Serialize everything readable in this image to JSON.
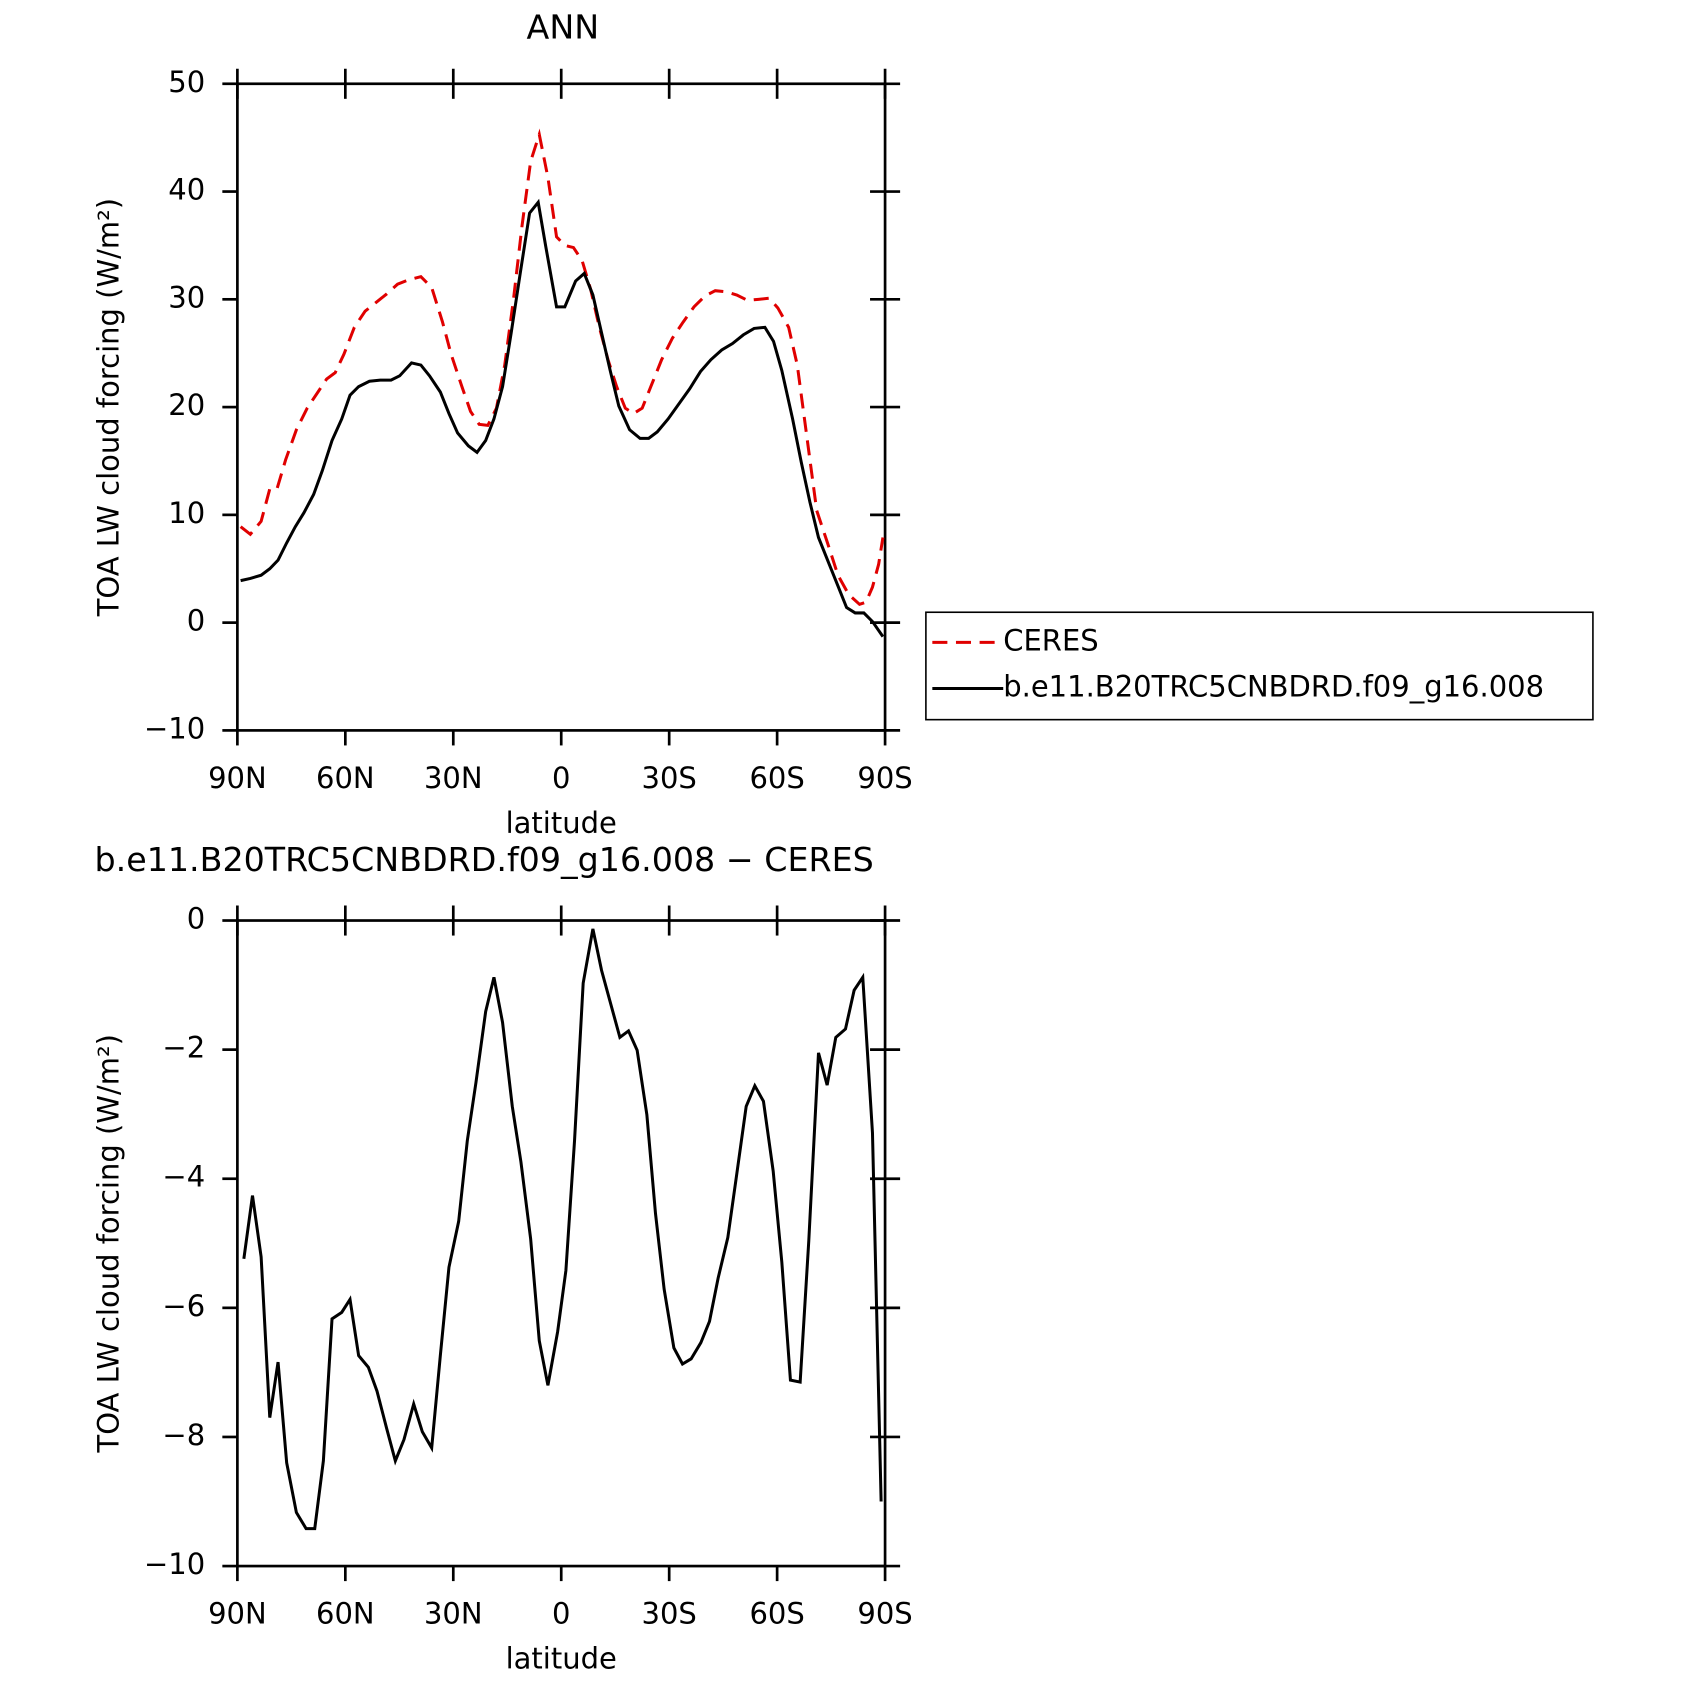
{
  "chart_data": [
    {
      "type": "line",
      "title": "ANN",
      "xlabel": "latitude",
      "ylabel": "TOA LW cloud forcing (W/m²)",
      "xlim": [
        90,
        -90
      ],
      "ylim": [
        -10,
        50
      ],
      "xticks": [
        {
          "value": 90,
          "label": "90N"
        },
        {
          "value": 60,
          "label": "60N"
        },
        {
          "value": 30,
          "label": "30N"
        },
        0,
        {
          "value": -30,
          "label": "30S"
        },
        {
          "value": -60,
          "label": "60S"
        },
        {
          "value": -90,
          "label": "90S"
        }
      ],
      "yticks": [
        {
          "value": -10,
          "label": "−10"
        },
        0,
        10,
        20,
        30,
        40,
        50
      ],
      "legend": "right",
      "series": [
        {
          "name": "CERES",
          "color": "#e00000",
          "dash": true,
          "x": [
            89.1,
            86.4,
            83.4,
            81,
            79,
            76.6,
            73.6,
            70.6,
            67.6,
            65.2,
            62.8,
            60.4,
            57.5,
            54.5,
            51.5,
            48.5,
            45.5,
            42.5,
            39,
            36,
            33,
            30.6,
            27.6,
            25.2,
            22.8,
            20.4,
            18,
            15.7,
            13.3,
            10.9,
            8.5,
            6.1,
            3.7,
            1.3,
            -1,
            -3.4,
            -5.8,
            -8.2,
            -10.6,
            -13,
            -15.4,
            -17.8,
            -20.1,
            -22.5,
            -24.9,
            -27.9,
            -30.9,
            -33.9,
            -36.9,
            -39.9,
            -42.8,
            -45.8,
            -48.8,
            -51.8,
            -54.8,
            -57.8,
            -60.2,
            -63.2,
            -65.6,
            -68,
            -71,
            -74,
            -76.9,
            -79.9,
            -82.9,
            -84.7,
            -86.5,
            -88.2,
            -89.4
          ],
          "values": [
            8.9,
            8.2,
            9.4,
            12.4,
            12.4,
            15.1,
            17.9,
            19.9,
            21.4,
            22.6,
            23.2,
            24.9,
            27.4,
            28.9,
            29.7,
            30.5,
            31.4,
            31.8,
            32.1,
            31.1,
            27.9,
            24.9,
            21.9,
            19.6,
            18.4,
            18.3,
            19.9,
            23.9,
            29.9,
            36.8,
            42.8,
            45.3,
            41.3,
            35.8,
            35.0,
            34.8,
            33.6,
            30.9,
            27.4,
            24.4,
            21.9,
            19.9,
            19.4,
            19.9,
            21.9,
            24.4,
            26.4,
            27.9,
            29.3,
            30.3,
            30.8,
            30.7,
            30.4,
            29.9,
            30.0,
            30.1,
            29.2,
            27.4,
            23.9,
            17.9,
            10.4,
            7.4,
            4.4,
            2.6,
            1.7,
            1.9,
            3.3,
            5.4,
            7.9
          ]
        },
        {
          "name": "b.e11.B20TRC5CNBDRD.f09_g16.008",
          "color": "#000000",
          "dash": false,
          "x": [
            89.1,
            86.4,
            83.4,
            81,
            78.7,
            76.3,
            73.9,
            71.5,
            68.8,
            66.4,
            63.7,
            61,
            58.7,
            56.3,
            53.3,
            50.3,
            47.3,
            44.9,
            41.6,
            39,
            36.6,
            33.6,
            31.2,
            28.8,
            25.8,
            23.4,
            21,
            18.7,
            16.3,
            13.9,
            11.4,
            8.8,
            6.4,
            4.3,
            1.3,
            -1,
            -4,
            -6.4,
            -8.8,
            -11.2,
            -13.6,
            -16,
            -19,
            -21.9,
            -24.3,
            -26.7,
            -29.7,
            -32.7,
            -35.7,
            -38.7,
            -41.6,
            -44.6,
            -47.6,
            -50.6,
            -53.6,
            -56.6,
            -59,
            -61.3,
            -64.3,
            -66.7,
            -69.1,
            -71.5,
            -74.5,
            -76.9,
            -79.3,
            -81.7,
            -84.1,
            -86.5,
            -89.4
          ],
          "values": [
            3.9,
            4.1,
            4.4,
            5.0,
            5.8,
            7.4,
            8.9,
            10.2,
            11.9,
            14.1,
            16.9,
            18.9,
            21.1,
            21.9,
            22.4,
            22.5,
            22.5,
            22.9,
            24.1,
            23.9,
            22.9,
            21.4,
            19.4,
            17.6,
            16.4,
            15.8,
            16.9,
            18.9,
            21.9,
            26.9,
            32.4,
            38.0,
            39.0,
            34.9,
            29.3,
            29.3,
            31.7,
            32.4,
            30.4,
            26.9,
            23.4,
            20.1,
            17.9,
            17.1,
            17.1,
            17.7,
            18.9,
            20.3,
            21.7,
            23.3,
            24.4,
            25.3,
            25.9,
            26.7,
            27.3,
            27.4,
            26.1,
            23.4,
            18.9,
            14.9,
            11.2,
            7.9,
            5.4,
            3.4,
            1.4,
            0.9,
            0.9,
            0.1,
            -1.3
          ]
        }
      ]
    },
    {
      "type": "line",
      "title": "b.e11.B20TRC5CNBDRD.f09_g16.008 − CERES",
      "xlabel": "latitude",
      "ylabel": "TOA LW cloud forcing (W/m²)",
      "xlim": [
        90,
        -90
      ],
      "ylim": [
        -10,
        0
      ],
      "xticks": [
        {
          "value": 90,
          "label": "90N"
        },
        {
          "value": 60,
          "label": "60N"
        },
        {
          "value": 30,
          "label": "30N"
        },
        0,
        {
          "value": -30,
          "label": "30S"
        },
        {
          "value": -60,
          "label": "60S"
        },
        {
          "value": -90,
          "label": "90S"
        }
      ],
      "yticks": [
        {
          "value": -10,
          "label": "−10"
        },
        {
          "value": -8,
          "label": "−8"
        },
        {
          "value": -6,
          "label": "−6"
        },
        {
          "value": -4,
          "label": "−4"
        },
        {
          "value": -2,
          "label": "−2"
        },
        0
      ],
      "series": [
        {
          "color": "#000000",
          "dash": false,
          "x": [
            88.2,
            85.8,
            83.4,
            81,
            78.7,
            76.3,
            73.6,
            70.9,
            68.5,
            66.1,
            63.7,
            61,
            58.7,
            56.3,
            53.6,
            51.2,
            48.5,
            46.1,
            43.7,
            41,
            38.6,
            36,
            33.6,
            31.2,
            28.5,
            26.1,
            23.7,
            21,
            18.7,
            16.3,
            13.6,
            11.2,
            8.5,
            6.1,
            3.7,
            1,
            -1.3,
            -3.7,
            -6.1,
            -8.8,
            -11.2,
            -13.6,
            -16.3,
            -18.7,
            -21.1,
            -23.8,
            -26.2,
            -28.6,
            -31.3,
            -33.7,
            -36.1,
            -38.8,
            -41.2,
            -43.6,
            -46.3,
            -48.7,
            -51.4,
            -53.8,
            -56.2,
            -58.9,
            -61.3,
            -63.7,
            -66.4,
            -68.8,
            -71.5,
            -73.9,
            -76.3,
            -79,
            -81.4,
            -83.8,
            -86.5,
            -88.9
          ],
          "values": [
            -5.24,
            -4.26,
            -5.21,
            -7.7,
            -6.84,
            -8.4,
            -9.17,
            -9.42,
            -9.42,
            -8.37,
            -6.17,
            -6.07,
            -5.87,
            -6.74,
            -6.92,
            -7.29,
            -7.87,
            -8.37,
            -8.04,
            -7.49,
            -7.92,
            -8.17,
            -6.74,
            -5.37,
            -4.66,
            -3.41,
            -2.51,
            -1.41,
            -0.88,
            -1.58,
            -2.88,
            -3.74,
            -4.93,
            -6.51,
            -7.2,
            -6.37,
            -5.42,
            -3.41,
            -0.97,
            -0.13,
            -0.77,
            -1.26,
            -1.81,
            -1.71,
            -2.01,
            -3.01,
            -4.54,
            -5.71,
            -6.62,
            -6.87,
            -6.79,
            -6.54,
            -6.21,
            -5.54,
            -4.91,
            -3.96,
            -2.88,
            -2.56,
            -2.8,
            -3.88,
            -5.29,
            -7.12,
            -7.15,
            -4.96,
            -2.05,
            -2.55,
            -1.81,
            -1.68,
            -1.08,
            -0.88,
            -3.29,
            -9.0
          ]
        }
      ]
    }
  ]
}
